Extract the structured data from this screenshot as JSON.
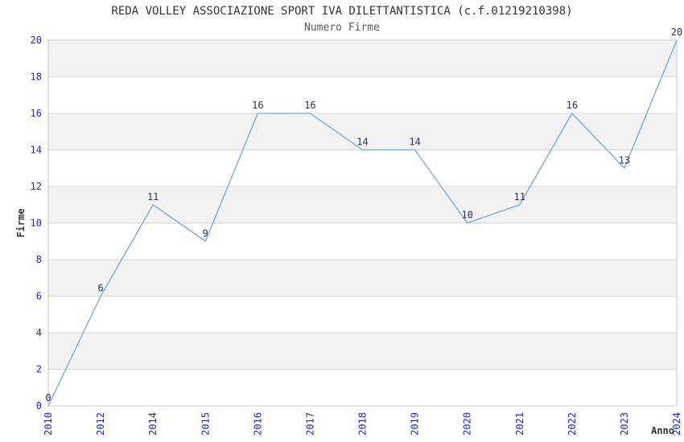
{
  "chart_data": {
    "type": "line",
    "title": "REDA VOLLEY ASSOCIAZIONE SPORT IVA DILETTANTISTICA (c.f.01219210398)",
    "subtitle": "Numero Firme",
    "categories": [
      "2010",
      "2012",
      "2014",
      "2015",
      "2016",
      "2017",
      "2018",
      "2019",
      "2020",
      "2021",
      "2022",
      "2023",
      "2024"
    ],
    "values": [
      0,
      6,
      11,
      9,
      16,
      16,
      14,
      14,
      10,
      11,
      16,
      13,
      20
    ],
    "xlabel": "Anno",
    "ylabel": "Firme",
    "ylim": [
      0,
      20
    ],
    "ytick_step": 2,
    "grid": "horizontal-stripes",
    "legend": "none",
    "point_markers": false,
    "x_tick_rotation": -90,
    "colors": {
      "line": "#74a7e0",
      "tick_label": "#2424cc",
      "data_label": "#2b2b6b",
      "title": "#333333",
      "subtitle": "#5a5a5a",
      "axis_title": "#333333",
      "stripe": "#f2f2f2",
      "gridline": "#d9d9d9",
      "border": "#c8c8c8",
      "background": "#ffffff"
    }
  }
}
